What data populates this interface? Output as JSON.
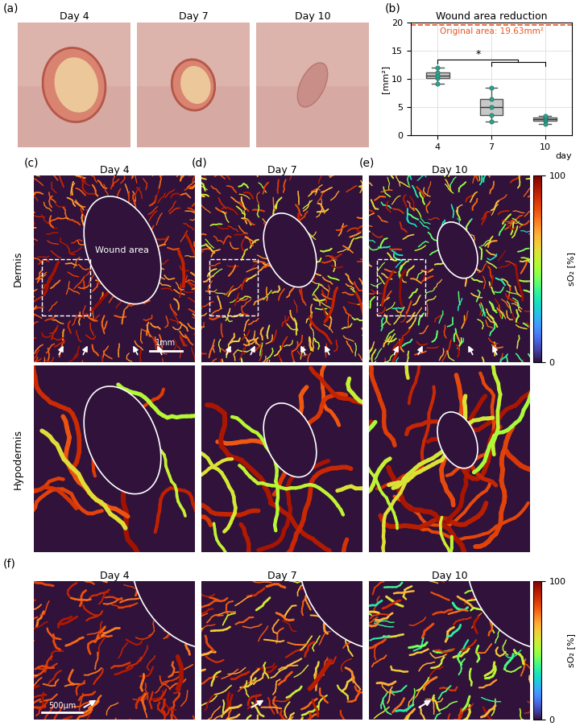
{
  "panel_labels": [
    "(a)",
    "(b)",
    "(c)",
    "(d)",
    "(e)",
    "(f)"
  ],
  "days": [
    "Day 4",
    "Day 7",
    "Day 10"
  ],
  "chart_data": {
    "type": "box",
    "title": "Wound area reduction",
    "xlabel": "day",
    "ylabel": "[mm²]",
    "x": [
      4,
      7,
      10
    ],
    "values": [
      [
        9.1,
        10.2,
        10.6,
        11.1,
        12.0
      ],
      [
        2.4,
        3.6,
        5.0,
        6.4,
        8.4
      ],
      [
        2.0,
        2.6,
        2.9,
        3.2,
        3.4
      ]
    ],
    "xlim": [
      2.5,
      11.5
    ],
    "xticks": [
      4,
      7,
      10
    ],
    "ylim": [
      0,
      20
    ],
    "yticks": [
      0,
      5,
      10,
      15,
      20
    ],
    "grid": true,
    "color": "#c8c8c8",
    "reference": {
      "text": "Original area: 19.63mm²",
      "value": 19.63,
      "color": "#e8541e"
    },
    "significance": {
      "text": "*",
      "from": 4,
      "to": [
        7,
        10
      ]
    }
  },
  "maps": {
    "row_labels": [
      "Dermis",
      "Hypodermis"
    ],
    "wound_label": "Wound area",
    "scale_bar": "1mm",
    "zoom_scale_bar": "500μm",
    "colorbar": {
      "label": "sO₂ [%]",
      "range": [
        0,
        100
      ],
      "ticks": [
        0,
        100
      ]
    }
  }
}
